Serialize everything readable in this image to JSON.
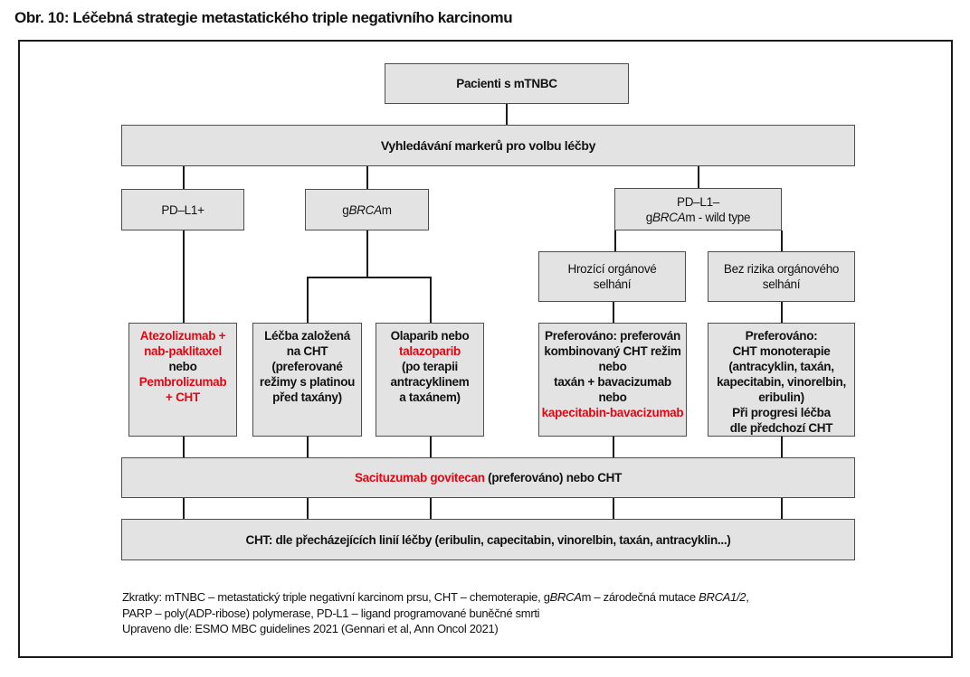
{
  "title": "Obr. 10: Léčebná strategie metastatického triple negativního karcinomu",
  "colors": {
    "red": "#e30613",
    "box_fill": "#e3e3e3",
    "box_border": "#4d4d4d",
    "line": "#1a1a1a",
    "text": "#111111"
  },
  "nodes": {
    "patients": {
      "lines": [
        "Pacienti s mTNBC"
      ]
    },
    "marker_search": {
      "lines": [
        "Vyhledávání markerů pro volbu léčby"
      ]
    },
    "pdl1_positive": {
      "lines": [
        "PD–L1+"
      ]
    },
    "gbrcam": {
      "lines": [
        [
          {
            "t": "g"
          },
          {
            "t": "BRCA",
            "s": "i"
          },
          {
            "t": "m"
          }
        ]
      ]
    },
    "pdl1_negative_wildtype": {
      "lines": [
        "PD–L1–",
        [
          {
            "t": "g"
          },
          {
            "t": "BRCA",
            "s": "i"
          },
          {
            "t": "m - wild type"
          }
        ]
      ]
    },
    "organ_failure_risk": {
      "lines": [
        "Hrozící orgánové",
        "selhání"
      ]
    },
    "no_organ_failure_risk": {
      "lines": [
        "Bez rizika orgánového",
        "selhání"
      ]
    },
    "tx_atezolizumab": {
      "lines": [
        [
          {
            "t": "Atezolizumab +",
            "s": "red"
          }
        ],
        [
          {
            "t": "nab-paklitaxel",
            "s": "red"
          }
        ],
        "nebo",
        [
          {
            "t": "Pembrolizumab",
            "s": "red"
          }
        ],
        [
          {
            "t": "+ CHT",
            "s": "red"
          }
        ]
      ]
    },
    "tx_cht_platinum": {
      "lines": [
        "Léčba založená",
        "na CHT",
        "(preferované",
        "režimy s platinou",
        "před taxány)"
      ]
    },
    "tx_olaparib": {
      "lines": [
        "Olaparib nebo",
        [
          {
            "t": "talazoparib",
            "s": "red"
          }
        ],
        "(po terapii",
        "antracyklinem",
        "a taxánem)"
      ]
    },
    "tx_combined_cht": {
      "lines": [
        "Preferováno: preferován",
        "kombinovaný CHT režim",
        "nebo",
        "taxán + bavacizumab",
        "nebo",
        [
          {
            "t": "kapecitabin-bavacizumab",
            "s": "red"
          }
        ]
      ]
    },
    "tx_cht_monotherapy": {
      "lines": [
        "Preferováno:",
        "CHT monoterapie",
        "(antracyklin, taxán,",
        "kapecitabin, vinorelbin,",
        "eribulin)",
        "Při progresi léčba",
        "dle předchozí CHT"
      ]
    },
    "sacituzumab": {
      "lines": [
        [
          {
            "t": "Sacituzumab govitecan",
            "s": "red"
          },
          {
            "t": " (preferováno) nebo CHT"
          }
        ]
      ]
    },
    "cht_lines": {
      "lines": [
        "CHT: dle přecházejících linií léčby (eribulin, capecitabin, vinorelbin, taxán, antracyklin...)"
      ]
    }
  },
  "footer": {
    "lines": [
      [
        {
          "t": "Zkratky: mTNBC – metastatický triple negativní karcinom prsu, CHT – chemoterapie, g"
        },
        {
          "t": "BRCA",
          "s": "i"
        },
        {
          "t": "m – zárodečná mutace "
        },
        {
          "t": "BRCA1/2",
          "s": "i"
        },
        {
          "t": ","
        }
      ],
      "PARP – poly(ADP-ribose) polymerase, PD-L1 – ligand programované buněčné smrti",
      "Upraveno dle: ESMO MBC guidelines 2021 (Gennari et al, Ann Oncol 2021)"
    ]
  }
}
